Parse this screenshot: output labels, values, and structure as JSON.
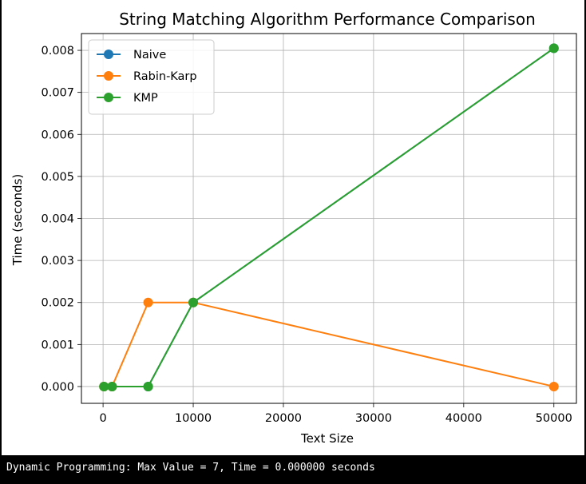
{
  "chart_data": {
    "type": "line",
    "title": "String Matching Algorithm Performance Comparison",
    "xlabel": "Text Size",
    "ylabel": "Time (seconds)",
    "x": [
      100,
      1000,
      5000,
      10000,
      50000
    ],
    "xlim": [
      -2400,
      52500
    ],
    "ylim": [
      -0.0004,
      0.0084
    ],
    "xticks": [
      0,
      10000,
      20000,
      30000,
      40000,
      50000
    ],
    "yticks": [
      0.0,
      0.001,
      0.002,
      0.003,
      0.004,
      0.005,
      0.006,
      0.007,
      0.008
    ],
    "xtick_labels": [
      "0",
      "10000",
      "20000",
      "30000",
      "40000",
      "50000"
    ],
    "ytick_labels": [
      "0.000",
      "0.001",
      "0.002",
      "0.003",
      "0.004",
      "0.005",
      "0.006",
      "0.007",
      "0.008"
    ],
    "grid": true,
    "legend_position": "top-left",
    "series": [
      {
        "name": "Naive",
        "color": "#1f77b4",
        "values": [
          0.0,
          0.0,
          0.0,
          0.002,
          0.00805
        ]
      },
      {
        "name": "Rabin-Karp",
        "color": "#ff7f0e",
        "values": [
          0.0,
          0.0,
          0.002,
          0.002,
          0.0
        ]
      },
      {
        "name": "KMP",
        "color": "#2ca02c",
        "values": [
          0.0,
          0.0,
          0.0,
          0.002,
          0.00805
        ]
      }
    ]
  },
  "console": {
    "output": "Dynamic Programming: Max Value = 7, Time = 0.000000 seconds"
  }
}
